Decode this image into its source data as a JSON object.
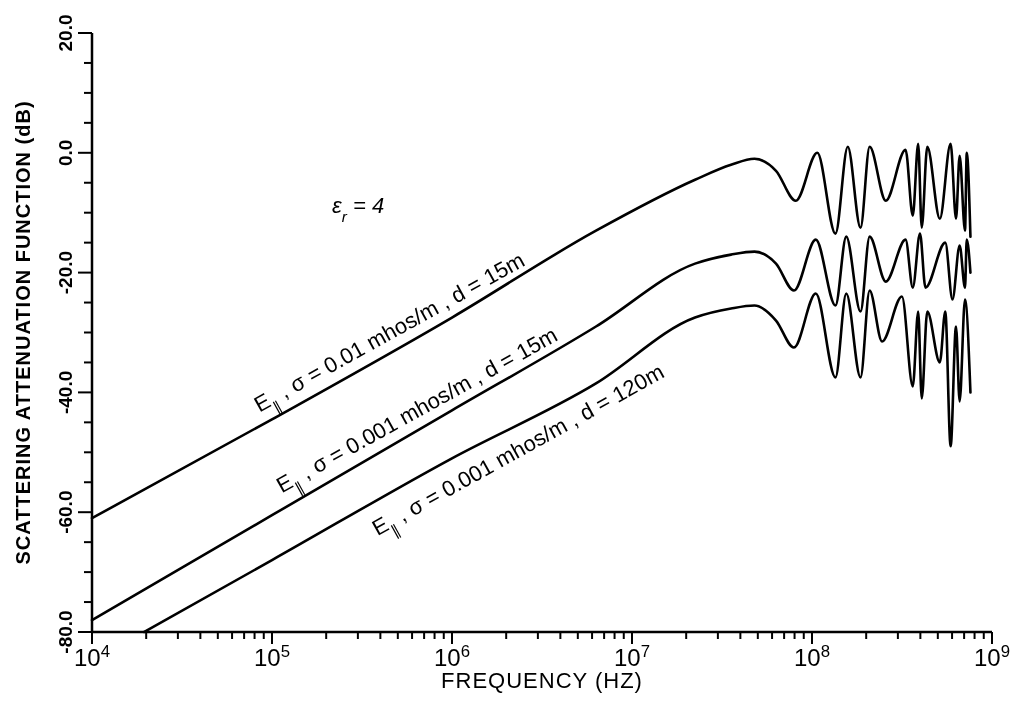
{
  "chart_data": {
    "type": "line",
    "xlabel": "FREQUENCY (HZ)",
    "ylabel": "SCATTERING ATTENUATION FUNCTION (dB)",
    "log": "x",
    "grid": false,
    "legend": false,
    "marker": "none",
    "line_style": "solid",
    "xlim": [
      10000.0,
      1000000000.0
    ],
    "ylim": [
      -80,
      20
    ],
    "xticks": [
      {
        "value": 10000.0,
        "label": "10$^{4}$"
      },
      {
        "value": 20000.0,
        "label": null
      },
      {
        "value": 30000.0,
        "label": null
      },
      {
        "value": 40000.0,
        "label": null
      },
      {
        "value": 50000.0,
        "label": null
      },
      {
        "value": 60000.0,
        "label": null
      },
      {
        "value": 70000.0,
        "label": null
      },
      {
        "value": 80000.0,
        "label": null
      },
      {
        "value": 90000.0,
        "label": null
      },
      {
        "value": 100000.0,
        "label": "10$^{5}$"
      },
      {
        "value": 200000.0,
        "label": null
      },
      {
        "value": 300000.0,
        "label": null
      },
      {
        "value": 400000.0,
        "label": null
      },
      {
        "value": 500000.0,
        "label": null
      },
      {
        "value": 600000.0,
        "label": null
      },
      {
        "value": 700000.0,
        "label": null
      },
      {
        "value": 800000.0,
        "label": null
      },
      {
        "value": 900000.0,
        "label": null
      },
      {
        "value": 1000000.0,
        "label": "10$^{6}$"
      },
      {
        "value": 2000000.0,
        "label": null
      },
      {
        "value": 3000000.0,
        "label": null
      },
      {
        "value": 4000000.0,
        "label": null
      },
      {
        "value": 5000000.0,
        "label": null
      },
      {
        "value": 6000000.0,
        "label": null
      },
      {
        "value": 7000000.0,
        "label": null
      },
      {
        "value": 8000000.0,
        "label": null
      },
      {
        "value": 9000000.0,
        "label": null
      },
      {
        "value": 10000000.0,
        "label": "10$^{7}$"
      },
      {
        "value": 20000000.0,
        "label": null
      },
      {
        "value": 30000000.0,
        "label": null
      },
      {
        "value": 40000000.0,
        "label": null
      },
      {
        "value": 50000000.0,
        "label": null
      },
      {
        "value": 60000000.0,
        "label": null
      },
      {
        "value": 70000000.0,
        "label": null
      },
      {
        "value": 80000000.0,
        "label": null
      },
      {
        "value": 90000000.0,
        "label": null
      },
      {
        "value": 100000000.0,
        "label": "10$^{8}$"
      },
      {
        "value": 200000000.0,
        "label": null
      },
      {
        "value": 300000000.0,
        "label": null
      },
      {
        "value": 400000000.0,
        "label": null
      },
      {
        "value": 500000000.0,
        "label": null
      },
      {
        "value": 600000000.0,
        "label": null
      },
      {
        "value": 700000000.0,
        "label": null
      },
      {
        "value": 800000000.0,
        "label": null
      },
      {
        "value": 900000000.0,
        "label": null
      },
      {
        "value": 1000000000.0,
        "label": "10$^{9}$"
      }
    ],
    "yticks": [
      {
        "value": -80,
        "label": "-80.0"
      },
      {
        "value": -75,
        "label": null
      },
      {
        "value": -70,
        "label": null
      },
      {
        "value": -65,
        "label": null
      },
      {
        "value": -60,
        "label": "-60.0"
      },
      {
        "value": -55,
        "label": null
      },
      {
        "value": -50,
        "label": null
      },
      {
        "value": -45,
        "label": null
      },
      {
        "value": -40,
        "label": "-40.0"
      },
      {
        "value": -35,
        "label": null
      },
      {
        "value": -30,
        "label": null
      },
      {
        "value": -25,
        "label": null
      },
      {
        "value": -20,
        "label": "-20.0"
      },
      {
        "value": -15,
        "label": null
      },
      {
        "value": -10,
        "label": null
      },
      {
        "value": -5,
        "label": null
      },
      {
        "value": 0,
        "label": "0.0"
      },
      {
        "value": 5,
        "label": null
      },
      {
        "value": 10,
        "label": null
      },
      {
        "value": 15,
        "label": null
      },
      {
        "value": 20,
        "label": "20.0"
      }
    ],
    "series": [
      {
        "color": "#000000",
        "x": [
          10000.0,
          100000.0,
          1000000.0,
          6310000.0,
          22400000.0,
          35500000.0,
          47900000.0,
          63100000.0,
          81300000.0,
          107000000.0,
          135000000.0,
          158000000.0,
          186000000.0,
          209000000.0,
          257000000.0,
          331000000.0,
          363000000.0,
          389000000.0,
          407000000.0,
          437000000.0,
          513000000.0,
          589000000.0,
          631000000.0,
          661000000.0,
          708000000.0,
          724000000.0,
          759000000.0
        ],
        "values": [
          -61,
          -44.5,
          -27.5,
          -13,
          -4.5,
          -2,
          -1,
          -3,
          -8,
          0,
          -13.5,
          1,
          -12.5,
          1,
          -8,
          0.5,
          -10.5,
          1.5,
          -12.5,
          1,
          -11,
          1.5,
          -11,
          -0.5,
          -13,
          0,
          -14
        ]
      },
      {
        "color": "#000000",
        "x": [
          10000.0,
          100000.0,
          1000000.0,
          6310000.0,
          22400000.0,
          35500000.0,
          47900000.0,
          63100000.0,
          79400000.0,
          105000000.0,
          135000000.0,
          155000000.0,
          186000000.0,
          209000000.0,
          257000000.0,
          331000000.0,
          363000000.0,
          398000000.0,
          427000000.0,
          550000000.0,
          603000000.0,
          661000000.0,
          708000000.0,
          724000000.0,
          759000000.0
        ],
        "values": [
          -78,
          -60.5,
          -43,
          -29,
          -18.5,
          -17,
          -16.5,
          -18.5,
          -23,
          -14.5,
          -25.5,
          -14,
          -26.5,
          -14,
          -21.5,
          -14.5,
          -22.5,
          -13.5,
          -22.5,
          -15,
          -24.5,
          -15.5,
          -22.5,
          -14.5,
          -20
        ]
      },
      {
        "color": "#000000",
        "x": [
          19500.0,
          100000.0,
          1000000.0,
          6310000.0,
          22400000.0,
          35500000.0,
          47900000.0,
          63100000.0,
          79400000.0,
          105000000.0,
          135000000.0,
          155000000.0,
          186000000.0,
          209000000.0,
          245000000.0,
          316000000.0,
          363000000.0,
          389000000.0,
          407000000.0,
          437000000.0,
          513000000.0,
          550000000.0,
          589000000.0,
          631000000.0,
          661000000.0,
          708000000.0,
          759000000.0
        ],
        "values": [
          -80,
          -68,
          -51,
          -38.5,
          -27.5,
          -26,
          -25.5,
          -28,
          -32.5,
          -23.5,
          -37.5,
          -23.5,
          -37.5,
          -23,
          -31.5,
          -24,
          -39,
          -26.5,
          -41,
          -26.5,
          -35,
          -26.5,
          -49,
          -29,
          -41.5,
          -24.5,
          -40
        ]
      }
    ],
    "annotations": [
      "ε$_{r}$ = 4",
      {
        "text": "E$_{∥}$ , σ = 0.01 mhos/m , d = 15m",
        "x": 500000.0,
        "y": -32.5
      },
      {
        "text": "E$_{∥}$ , σ = 0.001 mhos/m , d = 15m",
        "x": 710000.0,
        "y": -45.5
      },
      {
        "text": "E$_{∥}$ , σ = 0.001 mhos/m , d = 120m",
        "x": 2000000.0,
        "y": -46
      }
    ]
  }
}
